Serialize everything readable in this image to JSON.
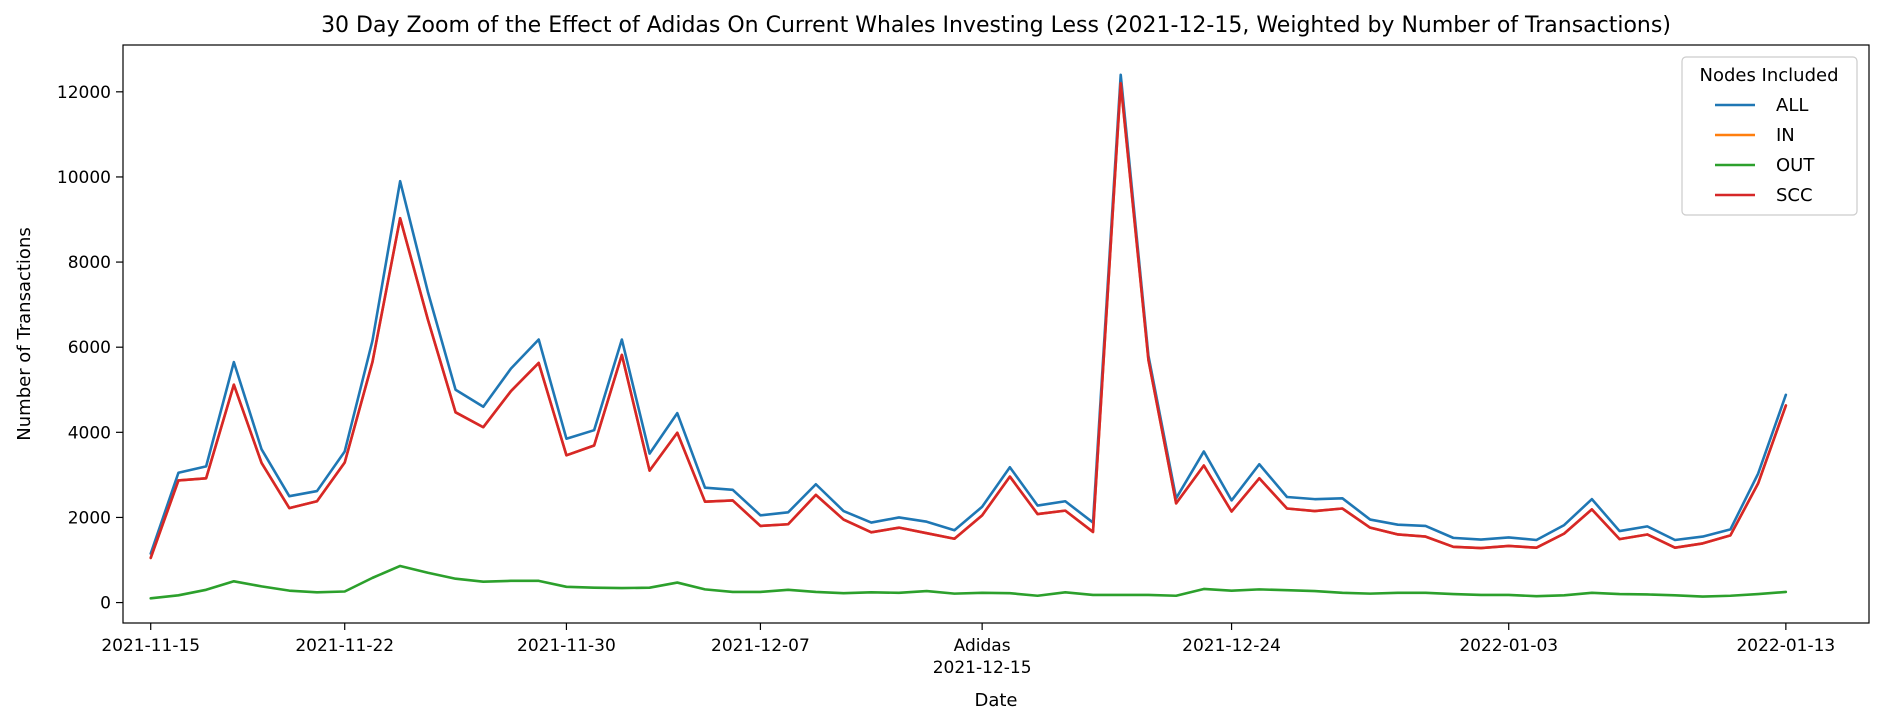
{
  "chart_data": {
    "type": "line",
    "title": "30 Day Zoom of the Effect of Adidas On Current Whales Investing Less (2021-12-15, Weighted by Number of Transactions)",
    "xlabel": "Date",
    "ylabel": "Number of Transactions",
    "ylim": [
      -480,
      13100
    ],
    "yticks": [
      0,
      2000,
      4000,
      6000,
      8000,
      10000,
      12000
    ],
    "x_range": [
      "2021-11-14",
      "2022-01-16"
    ],
    "xticks": [
      {
        "date": "2021-11-15",
        "label": "2021-11-15"
      },
      {
        "date": "2021-11-22",
        "label": "2021-11-22"
      },
      {
        "date": "2021-11-30",
        "label": "2021-11-30"
      },
      {
        "date": "2021-12-07",
        "label": "2021-12-07"
      },
      {
        "date": "2021-12-15",
        "label": "Adidas"
      },
      {
        "date": "2021-12-24",
        "label": "2021-12-24"
      },
      {
        "date": "2022-01-03",
        "label": "2022-01-03"
      },
      {
        "date": "2022-01-13",
        "label": "2022-01-13"
      }
    ],
    "event_label": {
      "date": "2021-12-15",
      "text": "2021-12-15"
    },
    "legend": {
      "title": "Nodes Included",
      "position": "upper right"
    },
    "grid": false,
    "x": [
      "2021-11-15",
      "2021-11-16",
      "2021-11-17",
      "2021-11-18",
      "2021-11-19",
      "2021-11-20",
      "2021-11-21",
      "2021-11-22",
      "2021-11-23",
      "2021-11-24",
      "2021-11-25",
      "2021-11-26",
      "2021-11-27",
      "2021-11-28",
      "2021-11-29",
      "2021-11-30",
      "2021-12-01",
      "2021-12-02",
      "2021-12-03",
      "2021-12-04",
      "2021-12-05",
      "2021-12-06",
      "2021-12-07",
      "2021-12-08",
      "2021-12-09",
      "2021-12-10",
      "2021-12-11",
      "2021-12-12",
      "2021-12-13",
      "2021-12-14",
      "2021-12-15",
      "2021-12-16",
      "2021-12-17",
      "2021-12-18",
      "2021-12-19",
      "2021-12-20",
      "2021-12-21",
      "2021-12-22",
      "2021-12-23",
      "2021-12-24",
      "2021-12-25",
      "2021-12-26",
      "2021-12-27",
      "2021-12-28",
      "2021-12-29",
      "2021-12-30",
      "2021-12-31",
      "2022-01-01",
      "2022-01-02",
      "2022-01-03",
      "2022-01-04",
      "2022-01-05",
      "2022-01-06",
      "2022-01-07",
      "2022-01-08",
      "2022-01-09",
      "2022-01-10",
      "2022-01-11",
      "2022-01-12",
      "2022-01-13"
    ],
    "series": [
      {
        "name": "ALL",
        "color": "#1f77b4",
        "values": [
          1150,
          3050,
          3200,
          5650,
          3600,
          2500,
          2620,
          3550,
          6150,
          9900,
          7300,
          5000,
          4600,
          5500,
          6180,
          3850,
          4050,
          6180,
          3500,
          4450,
          2700,
          2650,
          2050,
          2120,
          2780,
          2150,
          1880,
          2000,
          1900,
          1700,
          2250,
          3180,
          2280,
          2380,
          1880,
          12400,
          5800,
          2450,
          3550,
          2400,
          3250,
          2480,
          2430,
          2450,
          1950,
          1830,
          1800,
          1520,
          1480,
          1530,
          1470,
          1820,
          2430,
          1680,
          1790,
          1470,
          1550,
          1720,
          3030,
          4880
        ]
      },
      {
        "name": "IN",
        "color": "#ff7f0e",
        "values": [
          1050,
          2870,
          2920,
          5120,
          3280,
          2220,
          2380,
          3290,
          5650,
          9030,
          6650,
          4470,
          4120,
          4970,
          5630,
          3460,
          3690,
          5820,
          3100,
          3990,
          2370,
          2400,
          1800,
          1840,
          2530,
          1950,
          1650,
          1760,
          1630,
          1500,
          2050,
          2960,
          2080,
          2160,
          1660,
          12200,
          5700,
          2330,
          3220,
          2140,
          2920,
          2210,
          2150,
          2210,
          1760,
          1600,
          1550,
          1310,
          1280,
          1330,
          1290,
          1620,
          2190,
          1490,
          1600,
          1290,
          1390,
          1580,
          2800,
          4630
        ]
      },
      {
        "name": "OUT",
        "color": "#2ca02c",
        "values": [
          100,
          170,
          300,
          500,
          380,
          280,
          240,
          260,
          580,
          860,
          700,
          560,
          490,
          510,
          510,
          370,
          350,
          340,
          350,
          470,
          310,
          250,
          250,
          300,
          250,
          220,
          240,
          230,
          270,
          210,
          230,
          220,
          160,
          240,
          180,
          180,
          180,
          160,
          320,
          280,
          310,
          290,
          270,
          230,
          210,
          230,
          230,
          200,
          180,
          180,
          150,
          170,
          230,
          200,
          190,
          170,
          140,
          160,
          200,
          250
        ]
      },
      {
        "name": "SCC",
        "color": "#d62728",
        "values": [
          1050,
          2870,
          2920,
          5120,
          3280,
          2220,
          2380,
          3290,
          5650,
          9030,
          6650,
          4470,
          4120,
          4970,
          5630,
          3460,
          3690,
          5820,
          3100,
          3990,
          2370,
          2400,
          1800,
          1840,
          2530,
          1950,
          1650,
          1760,
          1630,
          1500,
          2050,
          2960,
          2080,
          2160,
          1660,
          12200,
          5700,
          2330,
          3220,
          2140,
          2920,
          2210,
          2150,
          2210,
          1760,
          1600,
          1550,
          1310,
          1280,
          1330,
          1290,
          1620,
          2190,
          1490,
          1600,
          1290,
          1390,
          1580,
          2800,
          4630
        ]
      }
    ]
  }
}
